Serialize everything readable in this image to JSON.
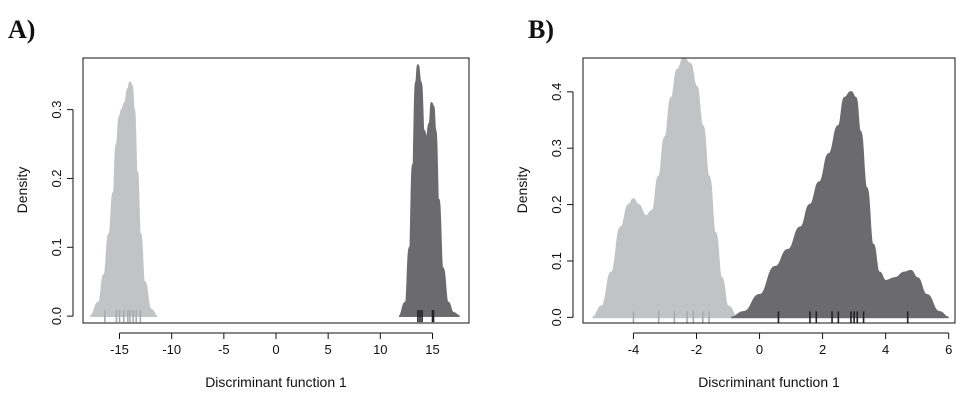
{
  "chart_data": [
    {
      "panel_label": "A)",
      "type": "area",
      "xlabel": "Discriminant function 1",
      "ylabel": "Density",
      "xlim": [
        -18.5,
        18.5
      ],
      "ylim": [
        -0.01,
        0.375
      ],
      "xticks": [
        -15,
        -10,
        -5,
        0,
        5,
        10,
        15
      ],
      "xtick_labels": [
        "-15",
        "-10",
        "-5",
        "0",
        "5",
        "10",
        "15"
      ],
      "yticks": [
        0.0,
        0.1,
        0.2,
        0.3
      ],
      "ytick_labels": [
        "0.0",
        "0.1",
        "0.2",
        "0.3"
      ],
      "series": [
        {
          "color": "#c2c3c5",
          "rug_color": "#a9aaac",
          "x": [
            -17.8,
            -17.0,
            -16.5,
            -16.0,
            -15.6,
            -15.3,
            -15.0,
            -14.8,
            -14.5,
            -14.2,
            -14.0,
            -13.8,
            -13.6,
            -13.3,
            -13.0,
            -12.6,
            -12.0,
            -11.4
          ],
          "y": [
            0.0,
            0.02,
            0.06,
            0.12,
            0.18,
            0.25,
            0.29,
            0.3,
            0.31,
            0.33,
            0.34,
            0.335,
            0.3,
            0.21,
            0.12,
            0.05,
            0.01,
            0.0
          ],
          "rug": [
            -16.4,
            -15.3,
            -15.0,
            -14.6,
            -14.2,
            -14.0,
            -13.7,
            -13.4,
            -13.0
          ]
        },
        {
          "color": "#6b6b6e",
          "rug_color": "#222222",
          "x": [
            11.8,
            12.4,
            12.8,
            13.1,
            13.4,
            13.6,
            13.9,
            14.2,
            14.4,
            14.7,
            14.9,
            15.1,
            15.3,
            15.6,
            16.0,
            16.5,
            17.0,
            17.6
          ],
          "y": [
            0.0,
            0.02,
            0.1,
            0.22,
            0.34,
            0.365,
            0.34,
            0.27,
            0.26,
            0.28,
            0.31,
            0.305,
            0.27,
            0.17,
            0.07,
            0.02,
            0.005,
            0.0
          ],
          "rug": [
            13.6,
            13.8,
            14.0,
            15.0,
            15.1
          ]
        }
      ]
    },
    {
      "panel_label": "B)",
      "type": "area",
      "xlabel": "Discriminant function 1",
      "ylabel": "Density",
      "xlim": [
        -5.6,
        6.2
      ],
      "ylim": [
        -0.01,
        0.46
      ],
      "xticks": [
        -4,
        -2,
        0,
        2,
        4,
        6
      ],
      "xtick_labels": [
        "-4",
        "-2",
        "0",
        "2",
        "4",
        "6"
      ],
      "yticks": [
        0.0,
        0.1,
        0.2,
        0.3,
        0.4
      ],
      "ytick_labels": [
        "0.0",
        "0.1",
        "0.2",
        "0.3",
        "0.4"
      ],
      "series": [
        {
          "color": "#c2c3c5",
          "rug_color": "#a9aaac",
          "x": [
            -5.3,
            -5.0,
            -4.7,
            -4.4,
            -4.15,
            -4.0,
            -3.85,
            -3.6,
            -3.4,
            -3.2,
            -3.0,
            -2.8,
            -2.6,
            -2.4,
            -2.2,
            -2.0,
            -1.8,
            -1.6,
            -1.4,
            -1.2,
            -1.0,
            -0.7
          ],
          "y": [
            0.0,
            0.02,
            0.08,
            0.16,
            0.2,
            0.21,
            0.2,
            0.18,
            0.19,
            0.25,
            0.32,
            0.39,
            0.44,
            0.46,
            0.45,
            0.41,
            0.34,
            0.25,
            0.15,
            0.07,
            0.02,
            0.0
          ],
          "rug": [
            -4.0,
            -3.2,
            -2.7,
            -2.3,
            -2.1,
            -1.8,
            -1.6
          ]
        },
        {
          "color": "#6b6b6e",
          "rug_color": "#222222",
          "x": [
            -0.9,
            -0.5,
            0.0,
            0.5,
            0.9,
            1.3,
            1.6,
            1.9,
            2.2,
            2.5,
            2.7,
            2.9,
            3.05,
            3.2,
            3.4,
            3.6,
            3.8,
            4.0,
            4.3,
            4.6,
            4.8,
            5.0,
            5.3,
            5.7,
            6.0
          ],
          "y": [
            0.0,
            0.01,
            0.04,
            0.09,
            0.12,
            0.16,
            0.2,
            0.24,
            0.29,
            0.34,
            0.39,
            0.4,
            0.39,
            0.33,
            0.23,
            0.13,
            0.08,
            0.065,
            0.07,
            0.08,
            0.083,
            0.07,
            0.04,
            0.01,
            0.0
          ],
          "rug": [
            0.6,
            1.6,
            1.8,
            2.3,
            2.5,
            2.9,
            3.0,
            3.1,
            3.3,
            4.7
          ]
        }
      ]
    }
  ]
}
